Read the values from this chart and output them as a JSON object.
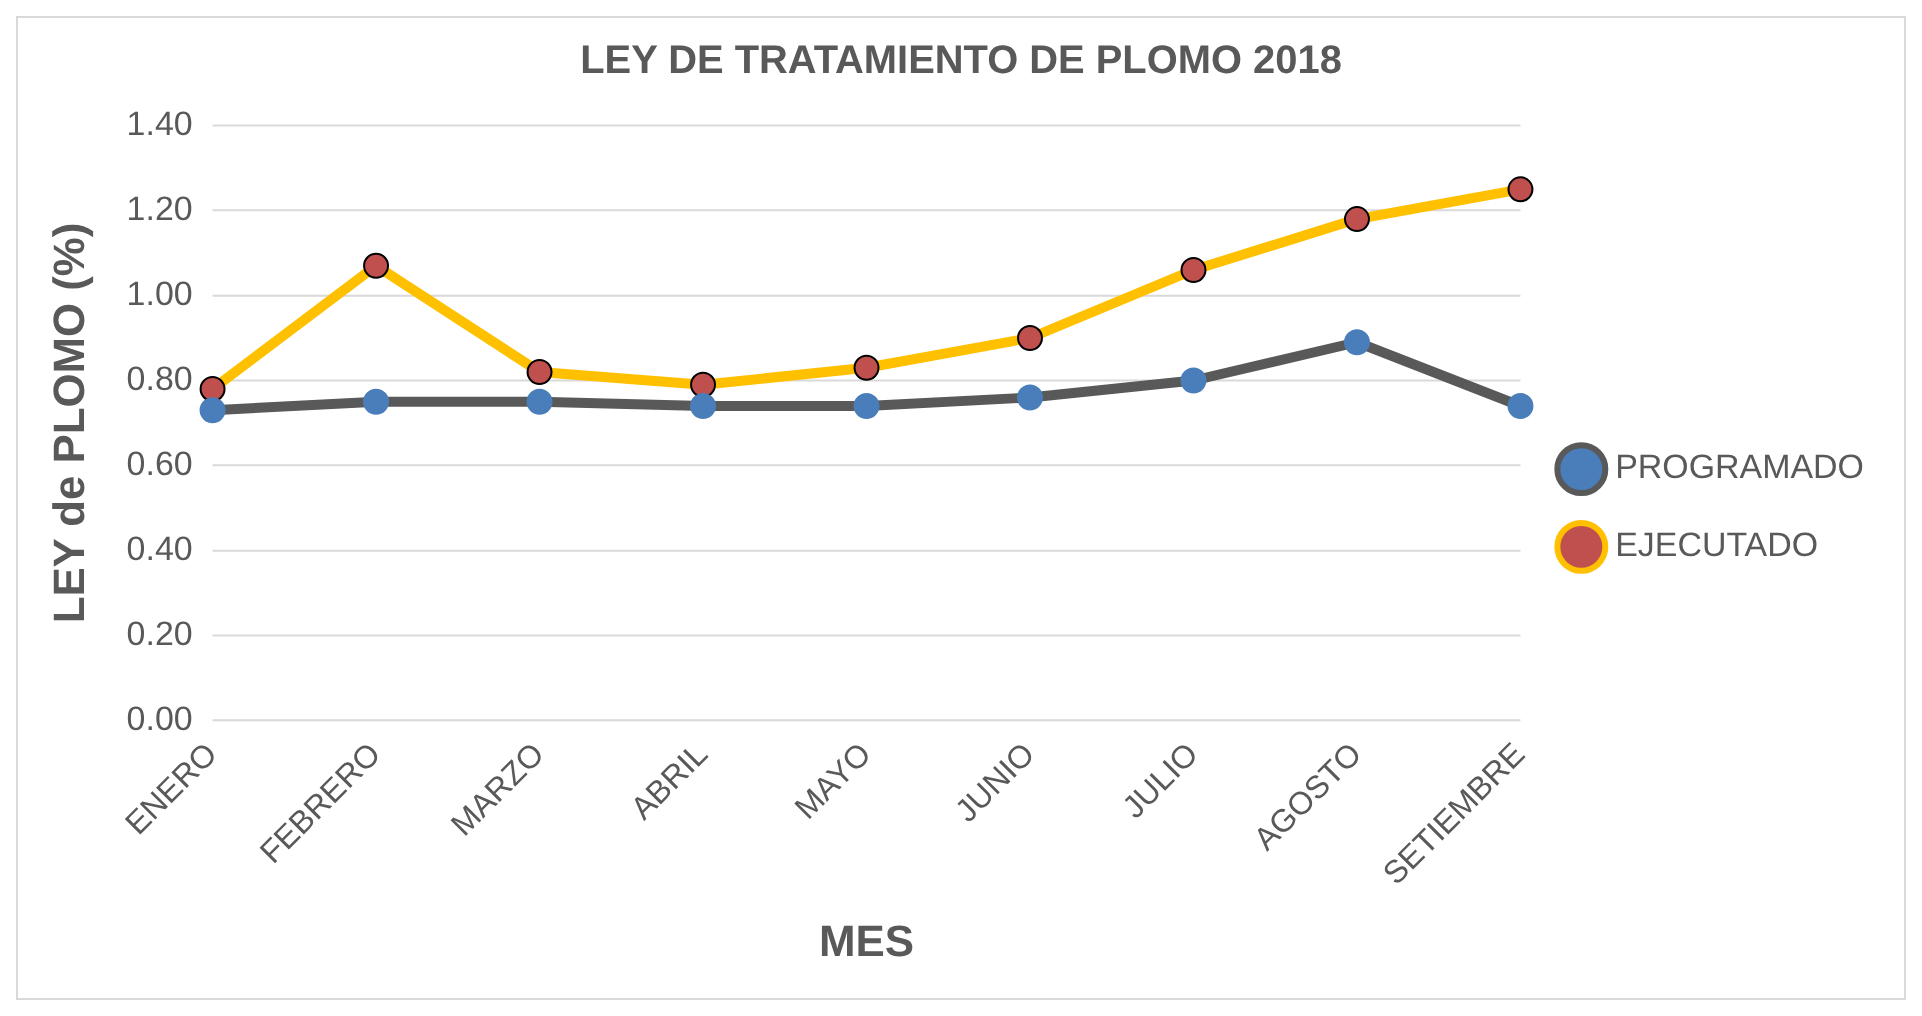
{
  "chart_data": {
    "type": "line",
    "title": "LEY DE TRATAMIENTO DE PLOMO 2018",
    "xlabel": "MES",
    "ylabel": "LEY de PLOMO (%)",
    "categories": [
      "ENERO",
      "FEBRERO",
      "MARZO",
      "ABRIL",
      "MAYO",
      "JUNIO",
      "JULIO",
      "AGOSTO",
      "SETIEMBRE"
    ],
    "series": [
      {
        "name": "PROGRAMADO",
        "color": "#595959",
        "values": [
          0.73,
          0.75,
          0.75,
          0.74,
          0.74,
          0.76,
          0.8,
          0.89,
          0.74
        ]
      },
      {
        "name": "EJECUTADO",
        "color": "#ffc000",
        "values": [
          0.78,
          1.07,
          0.82,
          0.79,
          0.83,
          0.9,
          1.06,
          1.18,
          1.25
        ]
      }
    ],
    "ylim": [
      0,
      1.4
    ],
    "yticks": [
      {
        "value": 0,
        "label": "0.00"
      },
      {
        "value": 0.2,
        "label": "0.20"
      },
      {
        "value": 0.4,
        "label": "0.40"
      },
      {
        "value": 0.6,
        "label": "0.60"
      },
      {
        "value": 0.8,
        "label": "0.80"
      },
      {
        "value": 1.0,
        "label": "1.00"
      },
      {
        "value": 1.2,
        "label": "1.20"
      },
      {
        "value": 1.4,
        "label": "1.40"
      }
    ],
    "grid": "y",
    "legend": "right",
    "marker": "circle"
  }
}
